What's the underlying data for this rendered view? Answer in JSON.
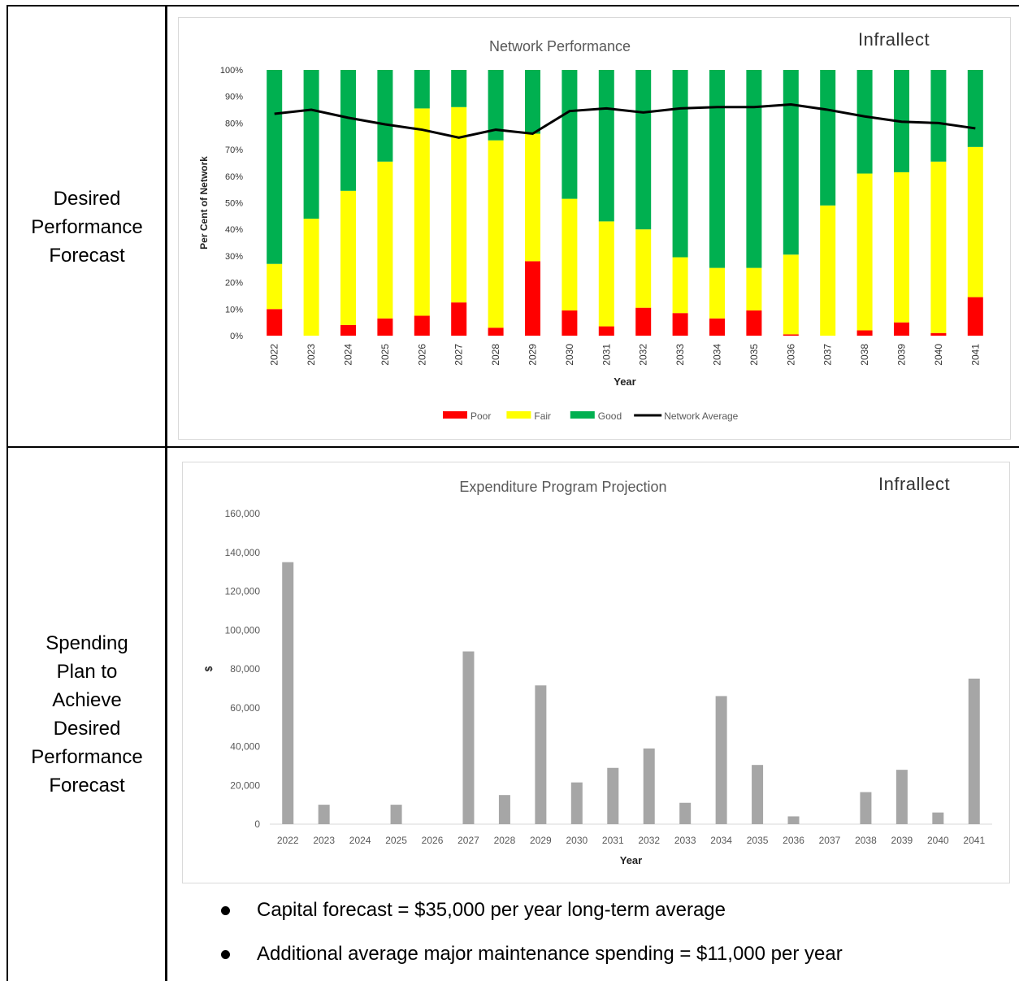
{
  "table": {
    "row1_label": [
      "Desired",
      "Performance",
      "Forecast"
    ],
    "row2_label": [
      "Spending",
      "Plan to",
      "Achieve",
      "Desired",
      "Performance",
      "Forecast"
    ]
  },
  "logo_text": "Infrallect",
  "chart_data": [
    {
      "type": "bar",
      "stacked": true,
      "title": "Network Performance",
      "xlabel": "Year",
      "ylabel": "Per Cent of Network",
      "ylim": [
        0,
        100
      ],
      "yticks": [
        "0%",
        "10%",
        "20%",
        "30%",
        "40%",
        "50%",
        "60%",
        "70%",
        "80%",
        "90%",
        "100%"
      ],
      "categories": [
        "2022",
        "2023",
        "2024",
        "2025",
        "2026",
        "2027",
        "2028",
        "2029",
        "2030",
        "2031",
        "2032",
        "2033",
        "2034",
        "2035",
        "2036",
        "2037",
        "2038",
        "2039",
        "2040",
        "2041"
      ],
      "series": [
        {
          "name": "Poor",
          "color": "#ff0000",
          "values": [
            10,
            0,
            4,
            6.5,
            7.5,
            12.5,
            3,
            28,
            9.5,
            3.5,
            10.5,
            8.5,
            6.5,
            9.5,
            0.5,
            0,
            2,
            5,
            1,
            14.5
          ]
        },
        {
          "name": "Fair",
          "color": "#ffff00",
          "values": [
            17,
            44,
            50.5,
            59,
            78,
            73.5,
            70.5,
            48,
            42,
            39.5,
            29.5,
            21,
            19,
            16,
            30,
            49,
            59,
            56.5,
            64.5,
            56.5
          ]
        },
        {
          "name": "Good",
          "color": "#00b050",
          "values": [
            73,
            56,
            45.5,
            34.5,
            14.5,
            14,
            26.5,
            24,
            48.5,
            57,
            60,
            70.5,
            74.5,
            74.5,
            69.5,
            51,
            39,
            38.5,
            34.5,
            29
          ]
        }
      ],
      "line_series": {
        "name": "Network Average",
        "color": "#000000",
        "values": [
          83.5,
          85,
          82,
          79.5,
          77.5,
          74.5,
          77.5,
          76,
          84.5,
          85.5,
          84,
          85.5,
          86,
          86,
          87,
          85,
          82.5,
          80.5,
          80,
          78
        ]
      },
      "legend_position": "bottom",
      "grid": false
    },
    {
      "type": "bar",
      "title": "Expenditure Program Projection",
      "xlabel": "Year",
      "ylabel": "$",
      "ylim": [
        0,
        160000
      ],
      "yticks": [
        "0",
        "20,000",
        "40,000",
        "60,000",
        "80,000",
        "100,000",
        "120,000",
        "140,000",
        "160,000"
      ],
      "categories": [
        "2022",
        "2023",
        "2024",
        "2025",
        "2026",
        "2027",
        "2028",
        "2029",
        "2030",
        "2031",
        "2032",
        "2033",
        "2034",
        "2035",
        "2036",
        "2037",
        "2038",
        "2039",
        "2040",
        "2041"
      ],
      "values": [
        135000,
        10000,
        0,
        10000,
        0,
        89000,
        15000,
        71500,
        21500,
        29000,
        39000,
        11000,
        66000,
        30500,
        4000,
        0,
        16500,
        28000,
        6000,
        75000
      ],
      "color": "#a6a6a6",
      "grid": false
    }
  ],
  "bullets": [
    "Capital forecast = $35,000 per year long-term average",
    "Additional average major maintenance spending = $11,000 per year"
  ]
}
